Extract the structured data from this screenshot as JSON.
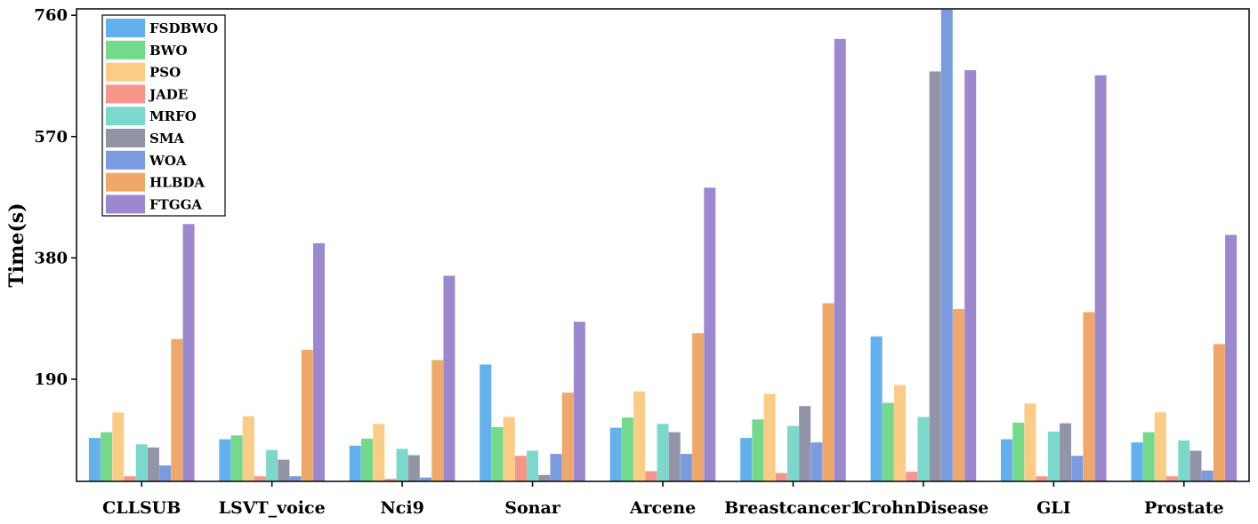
{
  "chart_data": {
    "type": "bar",
    "title": "",
    "xlabel": "",
    "ylabel": "Time(s)",
    "ylim": [
      30,
      770
    ],
    "yticks": [
      190,
      380,
      570,
      760
    ],
    "legend_position": "top-left",
    "grid": false,
    "categories": [
      "CLLSUB",
      "LSVT_voice",
      "Nci9",
      "Sonar",
      "Arcene",
      "Breastcancer1",
      "CrohnDisease",
      "GLI",
      "Prostate"
    ],
    "series": [
      {
        "name": "FSDBWO",
        "color": "#64b0ec",
        "values": [
          98,
          96,
          86,
          213,
          114,
          98,
          257,
          96,
          91
        ]
      },
      {
        "name": "BWO",
        "color": "#74d98a",
        "values": [
          107,
          102,
          97,
          115,
          130,
          127,
          153,
          122,
          107
        ]
      },
      {
        "name": "PSO",
        "color": "#fbcc85",
        "values": [
          138,
          132,
          120,
          131,
          171,
          167,
          181,
          152,
          138
        ]
      },
      {
        "name": "JADE",
        "color": "#f6968a",
        "values": [
          38,
          38,
          34,
          70,
          46,
          43,
          45,
          38,
          38
        ]
      },
      {
        "name": "MRFO",
        "color": "#7dd8cc",
        "values": [
          88,
          79,
          81,
          78,
          120,
          117,
          131,
          108,
          94
        ]
      },
      {
        "name": "SMA",
        "color": "#9494a8",
        "values": [
          83,
          64,
          71,
          40,
          107,
          148,
          672,
          121,
          78
        ]
      },
      {
        "name": "WOA",
        "color": "#7b9be0",
        "values": [
          55,
          38,
          36,
          73,
          73,
          91,
          785,
          70,
          47
        ]
      },
      {
        "name": "HLBDA",
        "color": "#efa869",
        "values": [
          253,
          236,
          220,
          169,
          262,
          309,
          300,
          295,
          245
        ]
      },
      {
        "name": "FTGGA",
        "color": "#9b88cf",
        "values": [
          433,
          403,
          352,
          280,
          490,
          723,
          674,
          666,
          416
        ]
      }
    ]
  }
}
